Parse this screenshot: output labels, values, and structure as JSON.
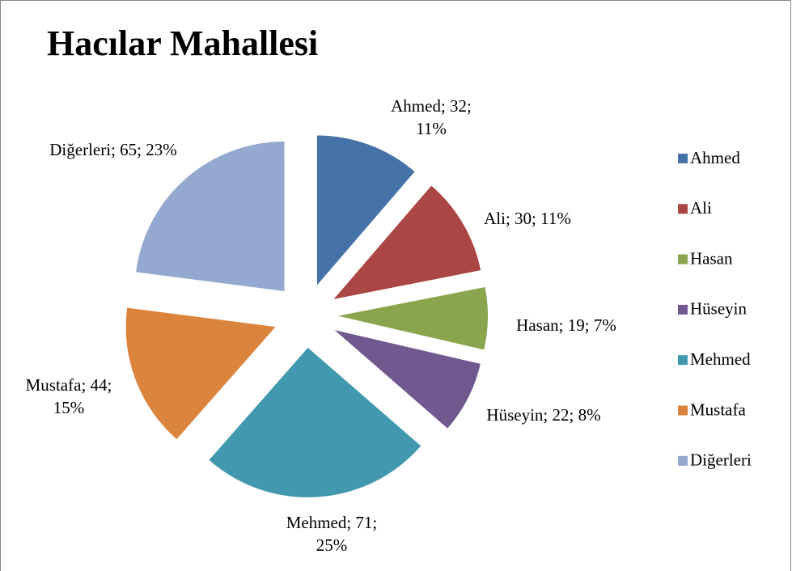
{
  "chart_data": {
    "type": "pie",
    "title": "Hacılar Mahallesi",
    "categories": [
      "Ahmed",
      "Ali",
      "Hasan",
      "Hüseyin",
      "Mehmed",
      "Mustafa",
      "Diğerleri"
    ],
    "values": [
      32,
      30,
      19,
      22,
      71,
      44,
      65
    ],
    "value_labels": [
      "Ahmed; 32; 11%",
      "Ali; 30; 11%",
      "Hasan; 19; 7%",
      "Hüseyin; 22; 8%",
      "Mehmed; 71; 25%",
      "Mustafa; 44; 15%",
      "Diğerleri; 65; 23%"
    ],
    "colors": [
      "#4572a7",
      "#aa4643",
      "#89a54e",
      "#71588f",
      "#4198af",
      "#db843d",
      "#93a9cf"
    ],
    "legend": "right"
  }
}
